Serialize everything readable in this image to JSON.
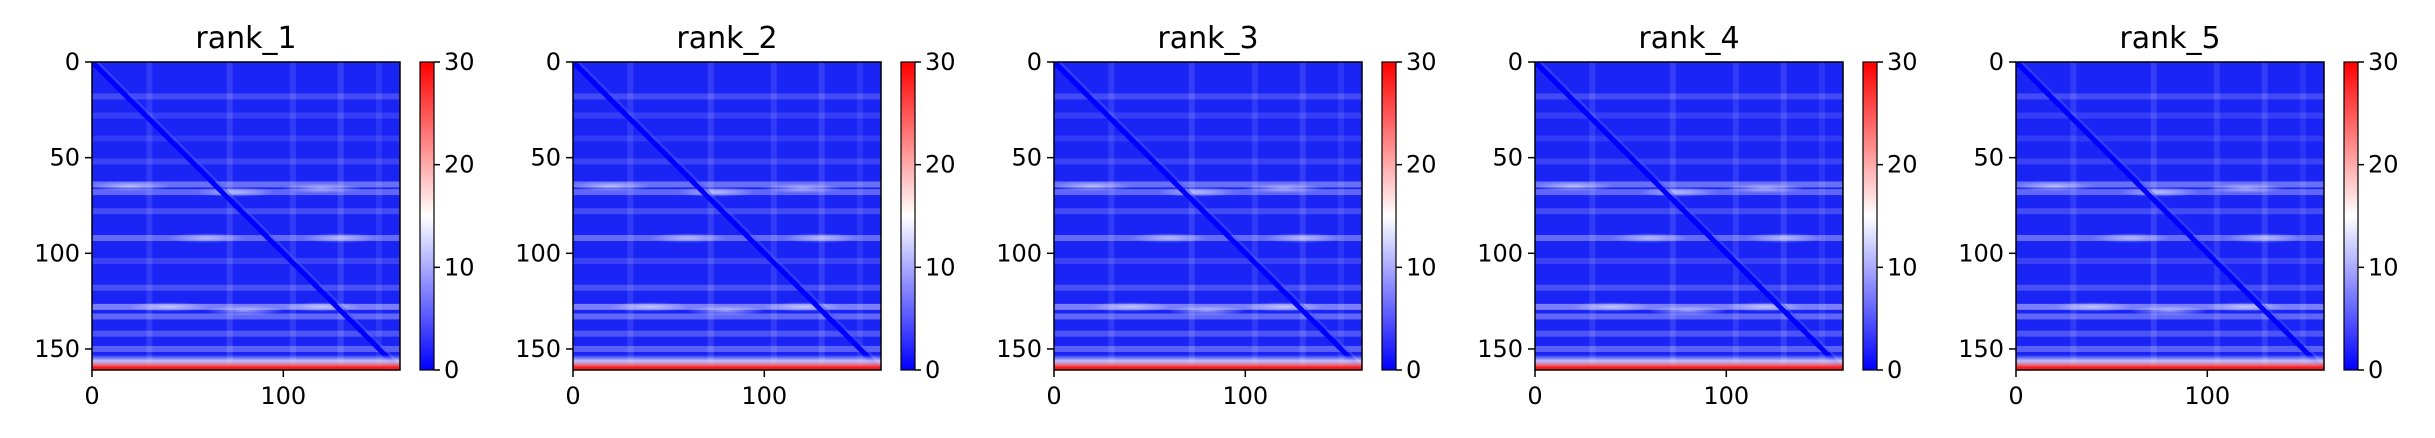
{
  "chart_data": [
    {
      "type": "heatmap",
      "title": "rank_1",
      "xlim": [
        0,
        161
      ],
      "ylim": [
        161,
        0
      ],
      "x_ticks": [
        {
          "value": 0,
          "label": "0"
        },
        {
          "value": 100,
          "label": "100"
        }
      ],
      "y_ticks": [
        {
          "value": 0,
          "label": "0"
        },
        {
          "value": 50,
          "label": "50"
        },
        {
          "value": 100,
          "label": "100"
        },
        {
          "value": 150,
          "label": "150"
        }
      ],
      "colorbar": {
        "min": 0,
        "max": 30,
        "ticks": [
          {
            "value": 0,
            "label": "0"
          },
          {
            "value": 10,
            "label": "10"
          },
          {
            "value": 20,
            "label": "20"
          },
          {
            "value": 30,
            "label": "30"
          }
        ]
      },
      "colormap": [
        "#0000ff",
        "#ffffff",
        "#ff0000"
      ]
    },
    {
      "type": "heatmap",
      "title": "rank_2",
      "xlim": [
        0,
        161
      ],
      "ylim": [
        161,
        0
      ],
      "x_ticks": [
        {
          "value": 0,
          "label": "0"
        },
        {
          "value": 100,
          "label": "100"
        }
      ],
      "y_ticks": [
        {
          "value": 0,
          "label": "0"
        },
        {
          "value": 50,
          "label": "50"
        },
        {
          "value": 100,
          "label": "100"
        },
        {
          "value": 150,
          "label": "150"
        }
      ],
      "colorbar": {
        "min": 0,
        "max": 30,
        "ticks": [
          {
            "value": 0,
            "label": "0"
          },
          {
            "value": 10,
            "label": "10"
          },
          {
            "value": 20,
            "label": "20"
          },
          {
            "value": 30,
            "label": "30"
          }
        ]
      },
      "colormap": [
        "#0000ff",
        "#ffffff",
        "#ff0000"
      ]
    },
    {
      "type": "heatmap",
      "title": "rank_3",
      "xlim": [
        0,
        161
      ],
      "ylim": [
        161,
        0
      ],
      "x_ticks": [
        {
          "value": 0,
          "label": "0"
        },
        {
          "value": 100,
          "label": "100"
        }
      ],
      "y_ticks": [
        {
          "value": 0,
          "label": "0"
        },
        {
          "value": 50,
          "label": "50"
        },
        {
          "value": 100,
          "label": "100"
        },
        {
          "value": 150,
          "label": "150"
        }
      ],
      "colorbar": {
        "min": 0,
        "max": 30,
        "ticks": [
          {
            "value": 0,
            "label": "0"
          },
          {
            "value": 10,
            "label": "10"
          },
          {
            "value": 20,
            "label": "20"
          },
          {
            "value": 30,
            "label": "30"
          }
        ]
      },
      "colormap": [
        "#0000ff",
        "#ffffff",
        "#ff0000"
      ]
    },
    {
      "type": "heatmap",
      "title": "rank_4",
      "xlim": [
        0,
        161
      ],
      "ylim": [
        161,
        0
      ],
      "x_ticks": [
        {
          "value": 0,
          "label": "0"
        },
        {
          "value": 100,
          "label": "100"
        }
      ],
      "y_ticks": [
        {
          "value": 0,
          "label": "0"
        },
        {
          "value": 50,
          "label": "50"
        },
        {
          "value": 100,
          "label": "100"
        },
        {
          "value": 150,
          "label": "150"
        }
      ],
      "colorbar": {
        "min": 0,
        "max": 30,
        "ticks": [
          {
            "value": 0,
            "label": "0"
          },
          {
            "value": 10,
            "label": "10"
          },
          {
            "value": 20,
            "label": "20"
          },
          {
            "value": 30,
            "label": "30"
          }
        ]
      },
      "colormap": [
        "#0000ff",
        "#ffffff",
        "#ff0000"
      ]
    },
    {
      "type": "heatmap",
      "title": "rank_5",
      "xlim": [
        0,
        161
      ],
      "ylim": [
        161,
        0
      ],
      "x_ticks": [
        {
          "value": 0,
          "label": "0"
        },
        {
          "value": 100,
          "label": "100"
        }
      ],
      "y_ticks": [
        {
          "value": 0,
          "label": "0"
        },
        {
          "value": 50,
          "label": "50"
        },
        {
          "value": 100,
          "label": "100"
        },
        {
          "value": 150,
          "label": "150"
        }
      ],
      "colorbar": {
        "min": 0,
        "max": 30,
        "ticks": [
          {
            "value": 0,
            "label": "0"
          },
          {
            "value": 10,
            "label": "10"
          },
          {
            "value": 20,
            "label": "20"
          },
          {
            "value": 30,
            "label": "30"
          }
        ]
      },
      "colormap": [
        "#0000ff",
        "#ffffff",
        "#ff0000"
      ]
    }
  ]
}
